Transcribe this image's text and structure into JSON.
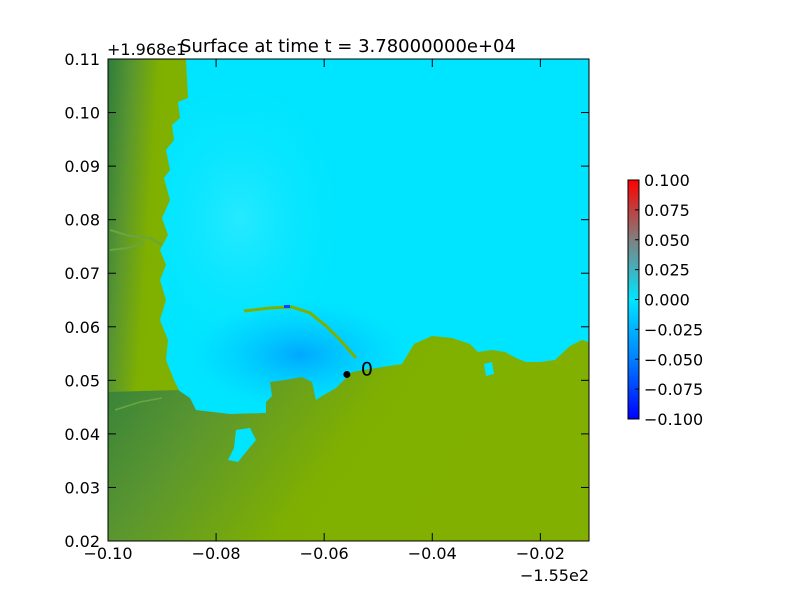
{
  "chart_data": {
    "type": "heatmap",
    "title": "Surface at time t = 3.78000000e+04",
    "x_offset_label": "−1.55e2",
    "y_offset_label": "+1.968e1",
    "xlim": [
      -0.1,
      -0.011
    ],
    "ylim": [
      0.02,
      0.11
    ],
    "x_ticks": [
      {
        "v": -0.1,
        "label": "−0.10"
      },
      {
        "v": -0.08,
        "label": "−0.08"
      },
      {
        "v": -0.06,
        "label": "−0.06"
      },
      {
        "v": -0.04,
        "label": "−0.04"
      },
      {
        "v": -0.02,
        "label": "−0.02"
      }
    ],
    "y_ticks": [
      {
        "v": 0.02,
        "label": "0.02"
      },
      {
        "v": 0.03,
        "label": "0.03"
      },
      {
        "v": 0.04,
        "label": "0.04"
      },
      {
        "v": 0.05,
        "label": "0.05"
      },
      {
        "v": 0.06,
        "label": "0.06"
      },
      {
        "v": 0.07,
        "label": "0.07"
      },
      {
        "v": 0.08,
        "label": "0.08"
      },
      {
        "v": 0.09,
        "label": "0.09"
      },
      {
        "v": 0.1,
        "label": "0.10"
      },
      {
        "v": 0.11,
        "label": "0.11"
      }
    ],
    "colorbar": {
      "range": [
        -0.1,
        0.1
      ],
      "ticks": [
        {
          "v": 0.1,
          "label": "0.100"
        },
        {
          "v": 0.075,
          "label": "0.075"
        },
        {
          "v": 0.05,
          "label": "0.050"
        },
        {
          "v": 0.025,
          "label": "0.025"
        },
        {
          "v": 0.0,
          "label": "0.000"
        },
        {
          "v": -0.025,
          "label": "−0.025"
        },
        {
          "v": -0.05,
          "label": "−0.050"
        },
        {
          "v": -0.075,
          "label": "−0.075"
        },
        {
          "v": -0.1,
          "label": "−0.100"
        }
      ],
      "colors": [
        "#0000ff",
        "#0080ff",
        "#00e5ff",
        "#808080",
        "#ff0000"
      ]
    },
    "water_color": "#00e5ff",
    "land_colors": [
      "#2e7d3c",
      "#5a9630",
      "#7fb000"
    ],
    "gauges": [
      {
        "label": "0",
        "x": -0.0558,
        "y": 0.0511
      }
    ],
    "grid": false,
    "legend": "none"
  }
}
